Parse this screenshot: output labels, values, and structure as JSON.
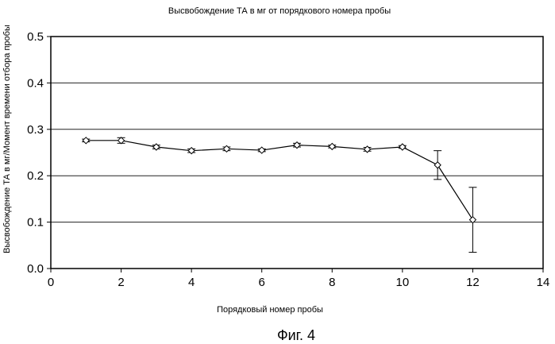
{
  "chart_data": {
    "type": "line",
    "title": "Высвобождение ТА в мг от порядкового номера пробы",
    "xlabel": "Порядковый номер пробы",
    "ylabel": "Высвобождение ТА в мг/Момент времени отбора пробы",
    "caption": "Фиг. 4",
    "xlim": [
      0,
      14
    ],
    "ylim": [
      0.0,
      0.5
    ],
    "x_ticks": [
      "0",
      "2",
      "4",
      "6",
      "8",
      "10",
      "12",
      "14"
    ],
    "y_ticks": [
      "0.0",
      "0.1",
      "0.2",
      "0.3",
      "0.4",
      "0.5"
    ],
    "grid": "horizontal",
    "series": [
      {
        "marker": "diamond",
        "x": [
          1,
          2,
          3,
          4,
          5,
          6,
          7,
          8,
          9,
          10,
          11,
          12
        ],
        "y": [
          0.276,
          0.276,
          0.262,
          0.254,
          0.258,
          0.255,
          0.266,
          0.263,
          0.257,
          0.262,
          0.223,
          0.105
        ],
        "error": [
          0.003,
          0.006,
          0.004,
          0.004,
          0.004,
          0.003,
          0.004,
          0.003,
          0.004,
          0.003,
          0.031,
          0.07
        ]
      }
    ]
  }
}
